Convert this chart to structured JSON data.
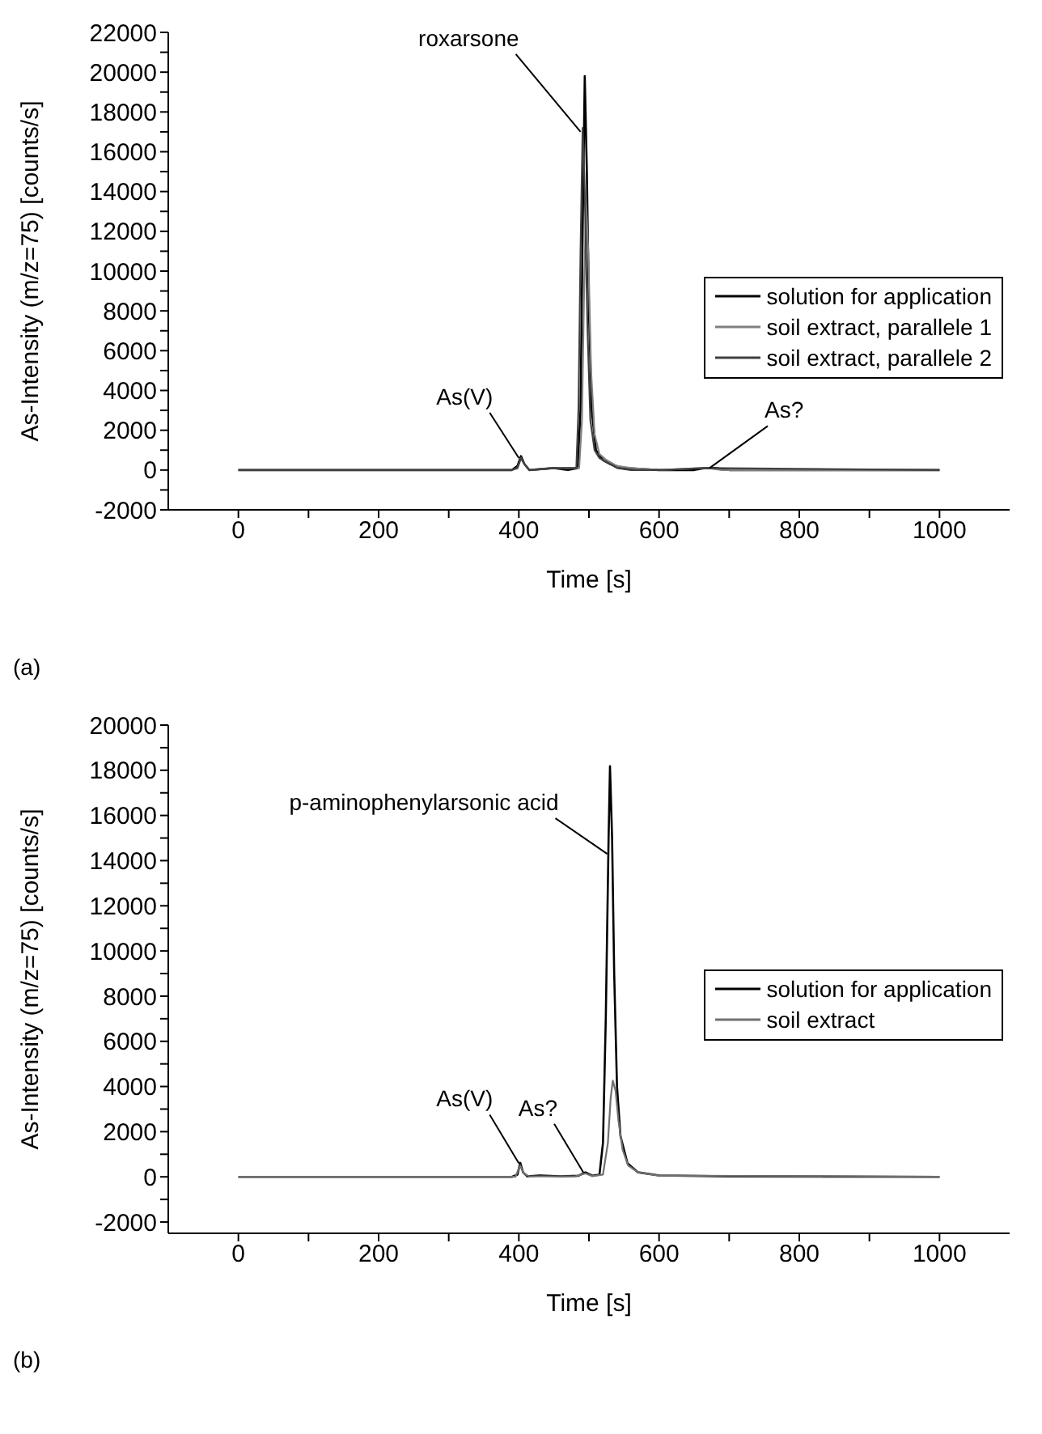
{
  "chart_data": [
    {
      "type": "line",
      "xlabel": "Time [s]",
      "ylabel": "As-Intensity (m/z=75) [counts/s]",
      "xlim": [
        -100,
        1100
      ],
      "ylim": [
        -2000,
        22000
      ],
      "xticks": [
        0,
        {
          "value": 100,
          "label": null
        },
        200,
        {
          "value": 300,
          "label": null
        },
        400,
        {
          "value": 500,
          "label": null
        },
        600,
        {
          "value": 700,
          "label": null
        },
        800,
        {
          "value": 900,
          "label": null
        },
        1000
      ],
      "yticks": [
        -2000,
        {
          "value": -1000,
          "label": null
        },
        0,
        {
          "value": 1000,
          "label": null
        },
        2000,
        {
          "value": 3000,
          "label": null
        },
        4000,
        {
          "value": 5000,
          "label": null
        },
        6000,
        {
          "value": 7000,
          "label": null
        },
        8000,
        {
          "value": 9000,
          "label": null
        },
        10000,
        {
          "value": 11000,
          "label": null
        },
        12000,
        {
          "value": 13000,
          "label": null
        },
        14000,
        {
          "value": 15000,
          "label": null
        },
        16000,
        {
          "value": 17000,
          "label": null
        },
        18000,
        {
          "value": 19000,
          "label": null
        },
        20000,
        {
          "value": 21000,
          "label": null
        },
        22000
      ],
      "legend": "right",
      "grid": false,
      "marker": "none",
      "line_style": "solid",
      "series": [
        {
          "name": "solution for application",
          "color": "#000000",
          "x": [
            0,
            100,
            390,
            398,
            403,
            408,
            415,
            450,
            470,
            484,
            488,
            491,
            494,
            497,
            500,
            504,
            510,
            520,
            530,
            550,
            600,
            650,
            665,
            680,
            700,
            1000
          ],
          "values": [
            0,
            0,
            0,
            200,
            700,
            300,
            0,
            100,
            0,
            100,
            3000,
            12000,
            19800,
            15000,
            8000,
            3000,
            1000,
            500,
            300,
            100,
            0,
            0,
            100,
            100,
            0,
            0
          ]
        },
        {
          "name": "soil extract, parallele 1",
          "color": "#808080",
          "x": [
            0,
            100,
            390,
            398,
            403,
            408,
            415,
            450,
            486,
            490,
            493,
            496,
            499,
            503,
            508,
            515,
            525,
            540,
            560,
            600,
            660,
            670,
            690,
            1000
          ],
          "values": [
            0,
            0,
            0,
            100,
            600,
            300,
            0,
            100,
            100,
            2500,
            9000,
            13400,
            11000,
            5000,
            1800,
            800,
            500,
            200,
            100,
            0,
            100,
            100,
            0,
            0
          ]
        },
        {
          "name": "soil extract, parallele 2",
          "color": "#404040",
          "x": [
            0,
            100,
            390,
            398,
            403,
            408,
            415,
            450,
            482,
            485,
            488,
            491,
            494,
            498,
            502,
            508,
            515,
            525,
            540,
            560,
            600,
            665,
            1000
          ],
          "values": [
            0,
            0,
            0,
            100,
            600,
            300,
            0,
            100,
            100,
            3000,
            11000,
            17200,
            14000,
            7000,
            2500,
            1000,
            600,
            400,
            100,
            0,
            0,
            100,
            0
          ]
        }
      ],
      "annotations": [
        {
          "text": "roxarsone",
          "x": 488,
          "y": 17000
        },
        {
          "text": "As(V)",
          "x": 400,
          "y": 600
        },
        {
          "text": "As?",
          "x": 672,
          "y": 100
        },
        "(a)"
      ]
    },
    {
      "type": "line",
      "xlabel": "Time [s]",
      "ylabel": "As-Intensity (m/z=75) [counts/s]",
      "xlim": [
        -100,
        1100
      ],
      "ylim": [
        -2500,
        20000
      ],
      "xticks": [
        0,
        {
          "value": 100,
          "label": null
        },
        200,
        {
          "value": 300,
          "label": null
        },
        400,
        {
          "value": 500,
          "label": null
        },
        600,
        {
          "value": 700,
          "label": null
        },
        800,
        {
          "value": 900,
          "label": null
        },
        1000
      ],
      "yticks": [
        -2000,
        {
          "value": -1000,
          "label": null
        },
        0,
        {
          "value": 1000,
          "label": null
        },
        2000,
        {
          "value": 3000,
          "label": null
        },
        4000,
        {
          "value": 5000,
          "label": null
        },
        6000,
        {
          "value": 7000,
          "label": null
        },
        8000,
        {
          "value": 9000,
          "label": null
        },
        10000,
        {
          "value": 11000,
          "label": null
        },
        12000,
        {
          "value": 13000,
          "label": null
        },
        14000,
        {
          "value": 15000,
          "label": null
        },
        16000,
        {
          "value": 17000,
          "label": null
        },
        18000,
        {
          "value": 19000,
          "label": null
        },
        20000
      ],
      "legend": "right",
      "grid": false,
      "marker": "none",
      "line_style": "solid",
      "series": [
        {
          "name": "solution for application",
          "color": "#000000",
          "x": [
            0,
            390,
            398,
            402,
            406,
            412,
            430,
            460,
            485,
            495,
            505,
            515,
            520,
            524,
            528,
            530,
            533,
            536,
            540,
            545,
            555,
            570,
            600,
            700,
            1000
          ],
          "values": [
            0,
            0,
            100,
            620,
            200,
            20,
            60,
            20,
            50,
            200,
            50,
            100,
            1500,
            7000,
            15000,
            18180,
            15000,
            9000,
            4000,
            1800,
            600,
            200,
            60,
            20,
            0
          ]
        },
        {
          "name": "soil extract",
          "color": "#707070",
          "x": [
            0,
            395,
            402,
            407,
            415,
            480,
            495,
            505,
            520,
            527,
            531,
            534,
            538,
            542,
            548,
            556,
            570,
            600,
            1000
          ],
          "values": [
            0,
            0,
            500,
            150,
            20,
            20,
            150,
            30,
            100,
            1500,
            3500,
            4260,
            3800,
            2500,
            1200,
            500,
            200,
            60,
            0
          ]
        }
      ],
      "annotations": [
        {
          "text": "p-aminophenylarsonic acid",
          "x": 526,
          "y": 14300
        },
        {
          "text": "As(V)",
          "x": 400,
          "y": 600
        },
        {
          "text": "As?",
          "x": 492,
          "y": 200
        },
        "(b)"
      ]
    }
  ]
}
